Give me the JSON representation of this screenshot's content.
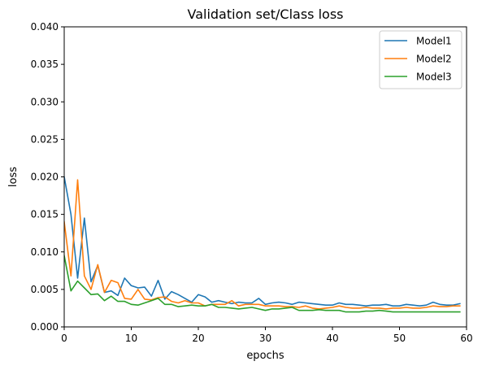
{
  "chart_data": {
    "type": "line",
    "title": "Validation set/Class loss",
    "xlabel": "epochs",
    "ylabel": "loss",
    "xlim": [
      0,
      60
    ],
    "ylim": [
      0,
      0.04
    ],
    "xticks": [
      0,
      10,
      20,
      30,
      40,
      50,
      60
    ],
    "xtick_labels": [
      "0",
      "10",
      "20",
      "30",
      "40",
      "50",
      "60"
    ],
    "yticks": [
      0,
      0.005,
      0.01,
      0.015,
      0.02,
      0.025,
      0.03,
      0.035,
      0.04
    ],
    "ytick_labels": [
      "0.000",
      "0.005",
      "0.010",
      "0.015",
      "0.020",
      "0.025",
      "0.030",
      "0.035",
      "0.040"
    ],
    "grid": false,
    "legend_position": "top-right",
    "x": [
      0,
      1,
      2,
      3,
      4,
      5,
      6,
      7,
      8,
      9,
      10,
      11,
      12,
      13,
      14,
      15,
      16,
      17,
      18,
      19,
      20,
      21,
      22,
      23,
      24,
      25,
      26,
      27,
      28,
      29,
      30,
      31,
      32,
      33,
      34,
      35,
      36,
      37,
      38,
      39,
      40,
      41,
      42,
      43,
      44,
      45,
      46,
      47,
      48,
      49,
      50,
      51,
      52,
      53,
      54,
      55,
      56,
      57,
      58,
      59
    ],
    "series": [
      {
        "name": "Model1",
        "color": "#1f77b4",
        "values": [
          0.02,
          0.015,
          0.0065,
          0.0145,
          0.006,
          0.0082,
          0.0046,
          0.0048,
          0.0042,
          0.0065,
          0.0055,
          0.0052,
          0.0053,
          0.0041,
          0.0062,
          0.0037,
          0.0047,
          0.0043,
          0.0038,
          0.0033,
          0.0043,
          0.004,
          0.0033,
          0.0035,
          0.0033,
          0.0031,
          0.0033,
          0.0032,
          0.0032,
          0.0038,
          0.003,
          0.0032,
          0.0033,
          0.0032,
          0.003,
          0.0033,
          0.0032,
          0.0031,
          0.003,
          0.0029,
          0.0029,
          0.0032,
          0.003,
          0.003,
          0.0029,
          0.0028,
          0.0029,
          0.0029,
          0.003,
          0.0028,
          0.0028,
          0.003,
          0.0029,
          0.0028,
          0.0029,
          0.0033,
          0.003,
          0.0029,
          0.0029,
          0.0031
        ]
      },
      {
        "name": "Model2",
        "color": "#ff7f0e",
        "values": [
          0.014,
          0.0068,
          0.0196,
          0.0068,
          0.005,
          0.0083,
          0.0046,
          0.0062,
          0.0059,
          0.0038,
          0.0037,
          0.005,
          0.0037,
          0.0036,
          0.0039,
          0.004,
          0.0034,
          0.0032,
          0.0035,
          0.0032,
          0.0032,
          0.0028,
          0.003,
          0.003,
          0.003,
          0.0035,
          0.0028,
          0.003,
          0.003,
          0.003,
          0.0028,
          0.0028,
          0.0028,
          0.0027,
          0.0027,
          0.0026,
          0.0028,
          0.0025,
          0.0024,
          0.0025,
          0.0026,
          0.0028,
          0.0026,
          0.0025,
          0.0025,
          0.0026,
          0.0025,
          0.0025,
          0.0024,
          0.0025,
          0.0025,
          0.0026,
          0.0025,
          0.0025,
          0.0026,
          0.0028,
          0.0027,
          0.0027,
          0.0028,
          0.0028
        ]
      },
      {
        "name": "Model3",
        "color": "#2ca02c",
        "values": [
          0.0095,
          0.0048,
          0.0061,
          0.0052,
          0.0043,
          0.0044,
          0.0035,
          0.0041,
          0.0034,
          0.0034,
          0.003,
          0.0029,
          0.0032,
          0.0035,
          0.0038,
          0.003,
          0.003,
          0.0027,
          0.0028,
          0.0029,
          0.0028,
          0.0028,
          0.003,
          0.0026,
          0.0026,
          0.0025,
          0.0024,
          0.0025,
          0.0026,
          0.0024,
          0.0022,
          0.0024,
          0.0024,
          0.0025,
          0.0026,
          0.0022,
          0.0022,
          0.0022,
          0.0023,
          0.0022,
          0.0022,
          0.0022,
          0.002,
          0.002,
          0.002,
          0.0021,
          0.0021,
          0.0022,
          0.0021,
          0.002,
          0.002,
          0.002,
          0.002,
          0.002,
          0.002,
          0.002,
          0.002,
          0.002,
          0.002,
          0.002
        ]
      }
    ]
  }
}
